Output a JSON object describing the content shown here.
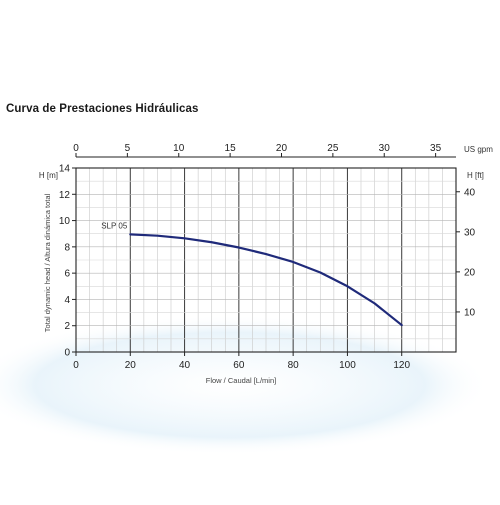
{
  "page": {
    "title": "Curva de Prestaciones Hidráulicas"
  },
  "chart_data": {
    "type": "line",
    "xlabel": "Flow / Caudal [L/min]",
    "ylabel": "Total dynamic head / Altura dinámica total",
    "x_unit_top": "US gpm",
    "y_unit_left": "H [m]",
    "y_unit_right": "H [ft]",
    "xlim": [
      0,
      140
    ],
    "ylim": [
      0,
      14
    ],
    "x_ticks": [
      0,
      20,
      40,
      60,
      80,
      100,
      120
    ],
    "y_ticks": [
      0,
      2,
      4,
      6,
      8,
      10,
      12,
      14
    ],
    "x2_ticks": [
      0,
      5,
      10,
      15,
      20,
      25,
      30,
      35
    ],
    "x2_per_x": 0.264172,
    "y2_ticks": [
      10,
      20,
      30,
      40
    ],
    "y2_per_y": 3.28084,
    "grid": true,
    "series": [
      {
        "name": "SLP 05",
        "color": "#1f2a7a",
        "x": [
          20,
          30,
          40,
          50,
          60,
          70,
          80,
          90,
          100,
          110,
          120
        ],
        "y": [
          8.95,
          8.85,
          8.65,
          8.35,
          7.95,
          7.45,
          6.85,
          6.05,
          5.0,
          3.7,
          2.05
        ]
      }
    ]
  }
}
